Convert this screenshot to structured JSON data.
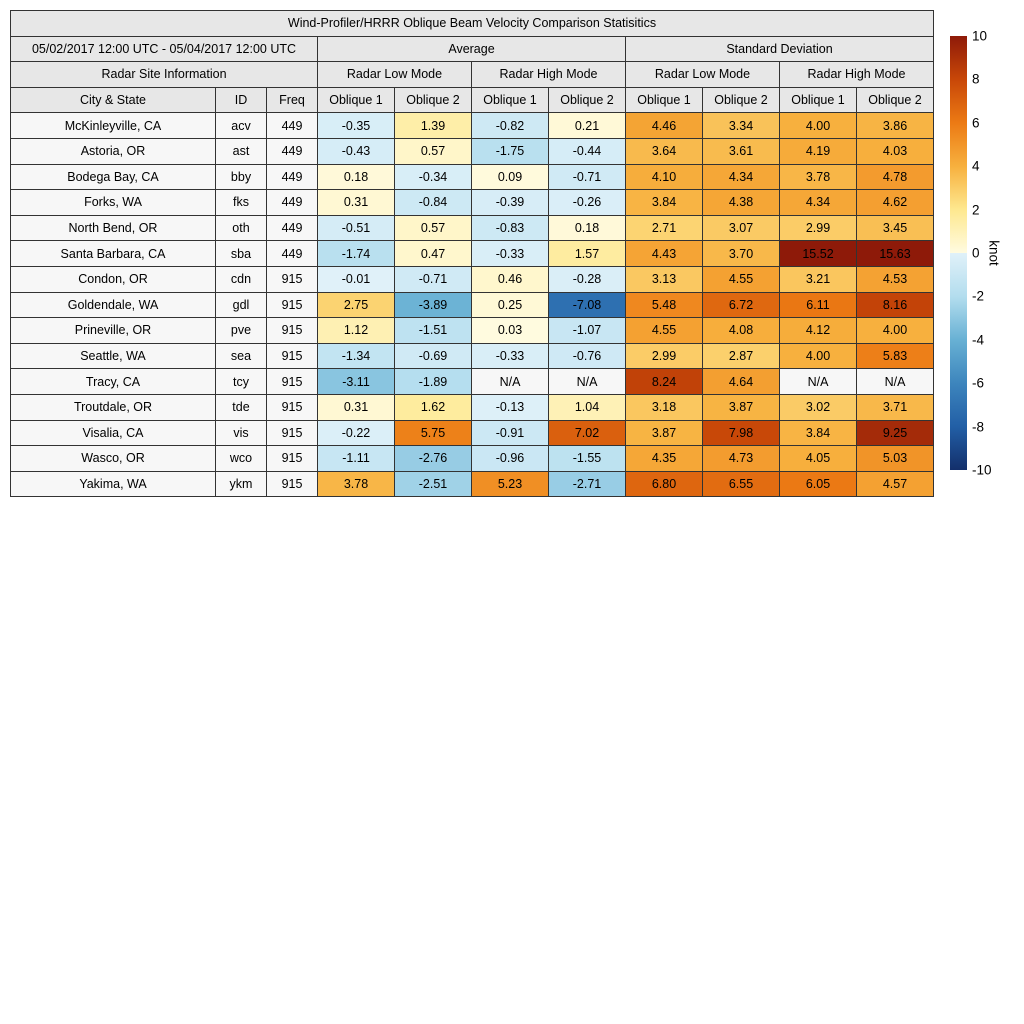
{
  "chart_data": {
    "type": "heatmap",
    "title": "Wind-Profiler/HRRR Oblique Beam Velocity Comparison Statisitics",
    "date_range": "05/02/2017 12:00 UTC - 05/04/2017 12:00 UTC",
    "site_info_header": "Radar Site Information",
    "group_headers": [
      "Average",
      "Standard Deviation"
    ],
    "mode_headers": [
      "Radar Low Mode",
      "Radar High Mode",
      "Radar Low Mode",
      "Radar High Mode"
    ],
    "columns": [
      "City & State",
      "ID",
      "Freq",
      "Oblique 1",
      "Oblique 2",
      "Oblique 1",
      "Oblique 2",
      "Oblique 1",
      "Oblique 2",
      "Oblique 1",
      "Oblique 2"
    ],
    "rows": [
      {
        "city": "McKinleyville, CA",
        "id": "acv",
        "freq": "449",
        "values": [
          -0.35,
          1.39,
          -0.82,
          0.21,
          4.46,
          3.34,
          4.0,
          3.86
        ]
      },
      {
        "city": "Astoria, OR",
        "id": "ast",
        "freq": "449",
        "values": [
          -0.43,
          0.57,
          -1.75,
          -0.44,
          3.64,
          3.61,
          4.19,
          4.03
        ]
      },
      {
        "city": "Bodega Bay, CA",
        "id": "bby",
        "freq": "449",
        "values": [
          0.18,
          -0.34,
          0.09,
          -0.71,
          4.1,
          4.34,
          3.78,
          4.78
        ]
      },
      {
        "city": "Forks, WA",
        "id": "fks",
        "freq": "449",
        "values": [
          0.31,
          -0.84,
          -0.39,
          -0.26,
          3.84,
          4.38,
          4.34,
          4.62
        ]
      },
      {
        "city": "North Bend, OR",
        "id": "oth",
        "freq": "449",
        "values": [
          -0.51,
          0.57,
          -0.83,
          0.18,
          2.71,
          3.07,
          2.99,
          3.45
        ]
      },
      {
        "city": "Santa Barbara, CA",
        "id": "sba",
        "freq": "449",
        "values": [
          -1.74,
          0.47,
          -0.33,
          1.57,
          4.43,
          3.7,
          15.52,
          15.63
        ]
      },
      {
        "city": "Condon, OR",
        "id": "cdn",
        "freq": "915",
        "values": [
          -0.01,
          -0.71,
          0.46,
          -0.28,
          3.13,
          4.55,
          3.21,
          4.53
        ]
      },
      {
        "city": "Goldendale, WA",
        "id": "gdl",
        "freq": "915",
        "values": [
          2.75,
          -3.89,
          0.25,
          -7.08,
          5.48,
          6.72,
          6.11,
          8.16
        ]
      },
      {
        "city": "Prineville, OR",
        "id": "pve",
        "freq": "915",
        "values": [
          1.12,
          -1.51,
          0.03,
          -1.07,
          4.55,
          4.08,
          4.12,
          4.0
        ]
      },
      {
        "city": "Seattle, WA",
        "id": "sea",
        "freq": "915",
        "values": [
          -1.34,
          -0.69,
          -0.33,
          -0.76,
          2.99,
          2.87,
          4.0,
          5.83
        ]
      },
      {
        "city": "Tracy, CA",
        "id": "tcy",
        "freq": "915",
        "values": [
          -3.11,
          -1.89,
          "N/A",
          "N/A",
          8.24,
          4.64,
          "N/A",
          "N/A"
        ]
      },
      {
        "city": "Troutdale, OR",
        "id": "tde",
        "freq": "915",
        "values": [
          0.31,
          1.62,
          -0.13,
          1.04,
          3.18,
          3.87,
          3.02,
          3.71
        ]
      },
      {
        "city": "Visalia, CA",
        "id": "vis",
        "freq": "915",
        "values": [
          -0.22,
          5.75,
          -0.91,
          7.02,
          3.87,
          7.98,
          3.84,
          9.25
        ]
      },
      {
        "city": "Wasco, OR",
        "id": "wco",
        "freq": "915",
        "values": [
          -1.11,
          -2.76,
          -0.96,
          -1.55,
          4.35,
          4.73,
          4.05,
          5.03
        ]
      },
      {
        "city": "Yakima, WA",
        "id": "ykm",
        "freq": "915",
        "values": [
          3.78,
          -2.51,
          5.23,
          -2.71,
          6.8,
          6.55,
          6.05,
          4.57
        ]
      }
    ],
    "colorbar": {
      "label": "knot",
      "min": -10,
      "max": 10,
      "ticks": [
        10,
        8,
        6,
        4,
        2,
        0,
        -2,
        -4,
        -6,
        -8,
        -10
      ],
      "positive_stops": [
        [
          0,
          "#fffbe0"
        ],
        [
          2,
          "#fee88f"
        ],
        [
          4,
          "#f7b03e"
        ],
        [
          6,
          "#ec7a14"
        ],
        [
          8,
          "#c84708"
        ],
        [
          10,
          "#8e1a09"
        ]
      ],
      "negative_stops": [
        [
          0,
          "#e0f1f9"
        ],
        [
          -2,
          "#b3ddee"
        ],
        [
          -4,
          "#68b1d4"
        ],
        [
          -6,
          "#3d85bd"
        ],
        [
          -8,
          "#225fa6"
        ],
        [
          -10,
          "#132f6b"
        ]
      ],
      "na_color": "#f7f7f7"
    }
  }
}
